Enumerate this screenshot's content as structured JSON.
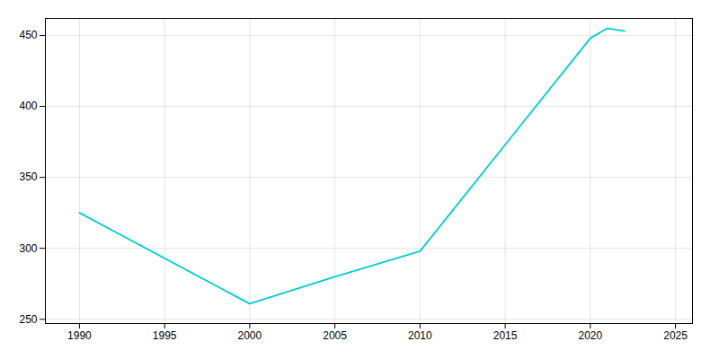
{
  "chart_data": {
    "type": "line",
    "x": [
      1990,
      2000,
      2005,
      2010,
      2015,
      2020,
      2021,
      2022
    ],
    "values": [
      325,
      261,
      280,
      298,
      373,
      448,
      455,
      453
    ],
    "color": "#00CED1",
    "xlim": [
      1988,
      2026
    ],
    "ylim": [
      247,
      462
    ],
    "xticks": [
      1990,
      1995,
      2000,
      2005,
      2010,
      2015,
      2020,
      2025
    ],
    "yticks": [
      250,
      300,
      350,
      400,
      450
    ],
    "grid": true
  }
}
